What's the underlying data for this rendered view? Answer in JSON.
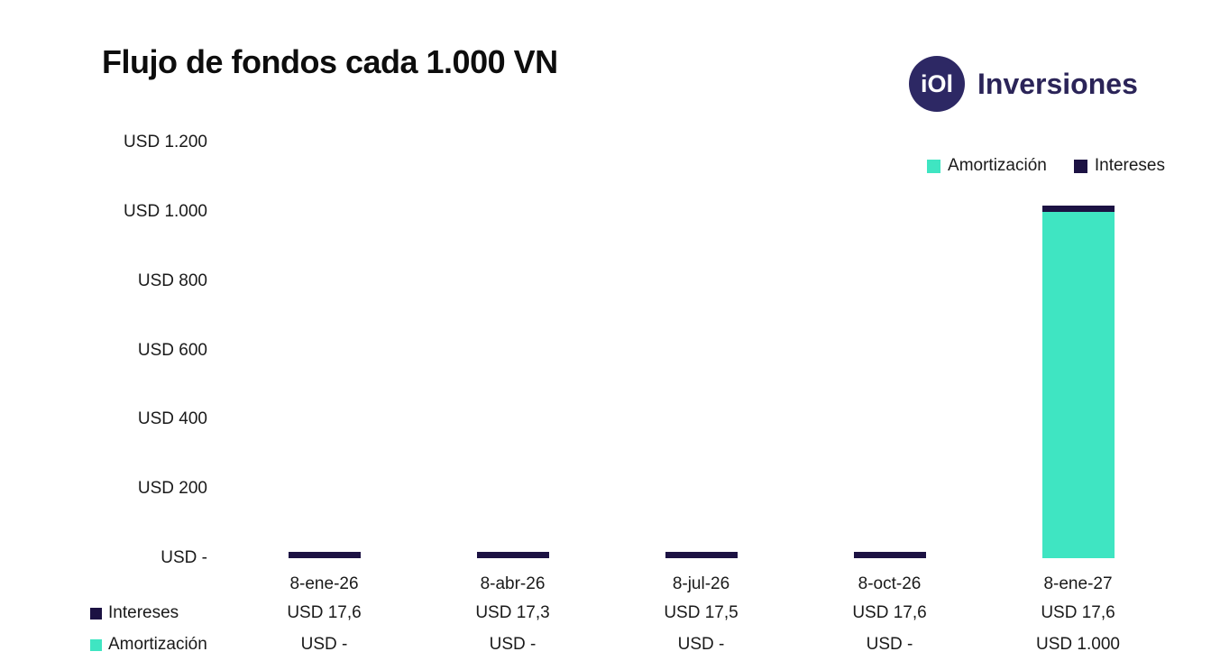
{
  "title": "Flujo de fondos cada 1.000 VN",
  "logo": {
    "icon_text": "iOl",
    "brand": "Inversiones"
  },
  "colors": {
    "amortizacion": "#3fe5c2",
    "intereses": "#1c1243",
    "brand": "#2b2458"
  },
  "legend": [
    {
      "label": "Amortización",
      "color": "#3fe5c2"
    },
    {
      "label": "Intereses",
      "color": "#1c1243"
    }
  ],
  "chart_data": {
    "type": "bar",
    "stacked": true,
    "title": "Flujo de fondos cada 1.000 VN",
    "categories": [
      "8-ene-26",
      "8-abr-26",
      "8-jul-26",
      "8-oct-26",
      "8-ene-27"
    ],
    "series": [
      {
        "name": "Amortización",
        "color": "#3fe5c2",
        "values": [
          0,
          0,
          0,
          0,
          1000
        ],
        "labels": [
          "USD -",
          "USD -",
          "USD -",
          "USD -",
          "USD 1.000"
        ]
      },
      {
        "name": "Intereses",
        "color": "#1c1243",
        "values": [
          17.6,
          17.3,
          17.5,
          17.6,
          17.6
        ],
        "labels": [
          "USD 17,6",
          "USD 17,3",
          "USD 17,5",
          "USD 17,6",
          "USD 17,6"
        ]
      }
    ],
    "y_ticks": [
      "USD 1.200",
      "USD 1.000",
      "USD 800",
      "USD 600",
      "USD 400",
      "USD 200",
      "USD -"
    ],
    "ylim": [
      0,
      1200
    ],
    "xlabel": "",
    "ylabel": "",
    "grid": false,
    "legend_position": "top-right"
  },
  "table": {
    "rows": [
      {
        "label": "Intereses",
        "color": "#1c1243",
        "values": [
          "USD 17,6",
          "USD 17,3",
          "USD 17,5",
          "USD 17,6",
          "USD 17,6"
        ]
      },
      {
        "label": "Amortización",
        "color": "#3fe5c2",
        "values": [
          "USD -",
          "USD -",
          "USD -",
          "USD -",
          "USD 1.000"
        ]
      }
    ]
  }
}
